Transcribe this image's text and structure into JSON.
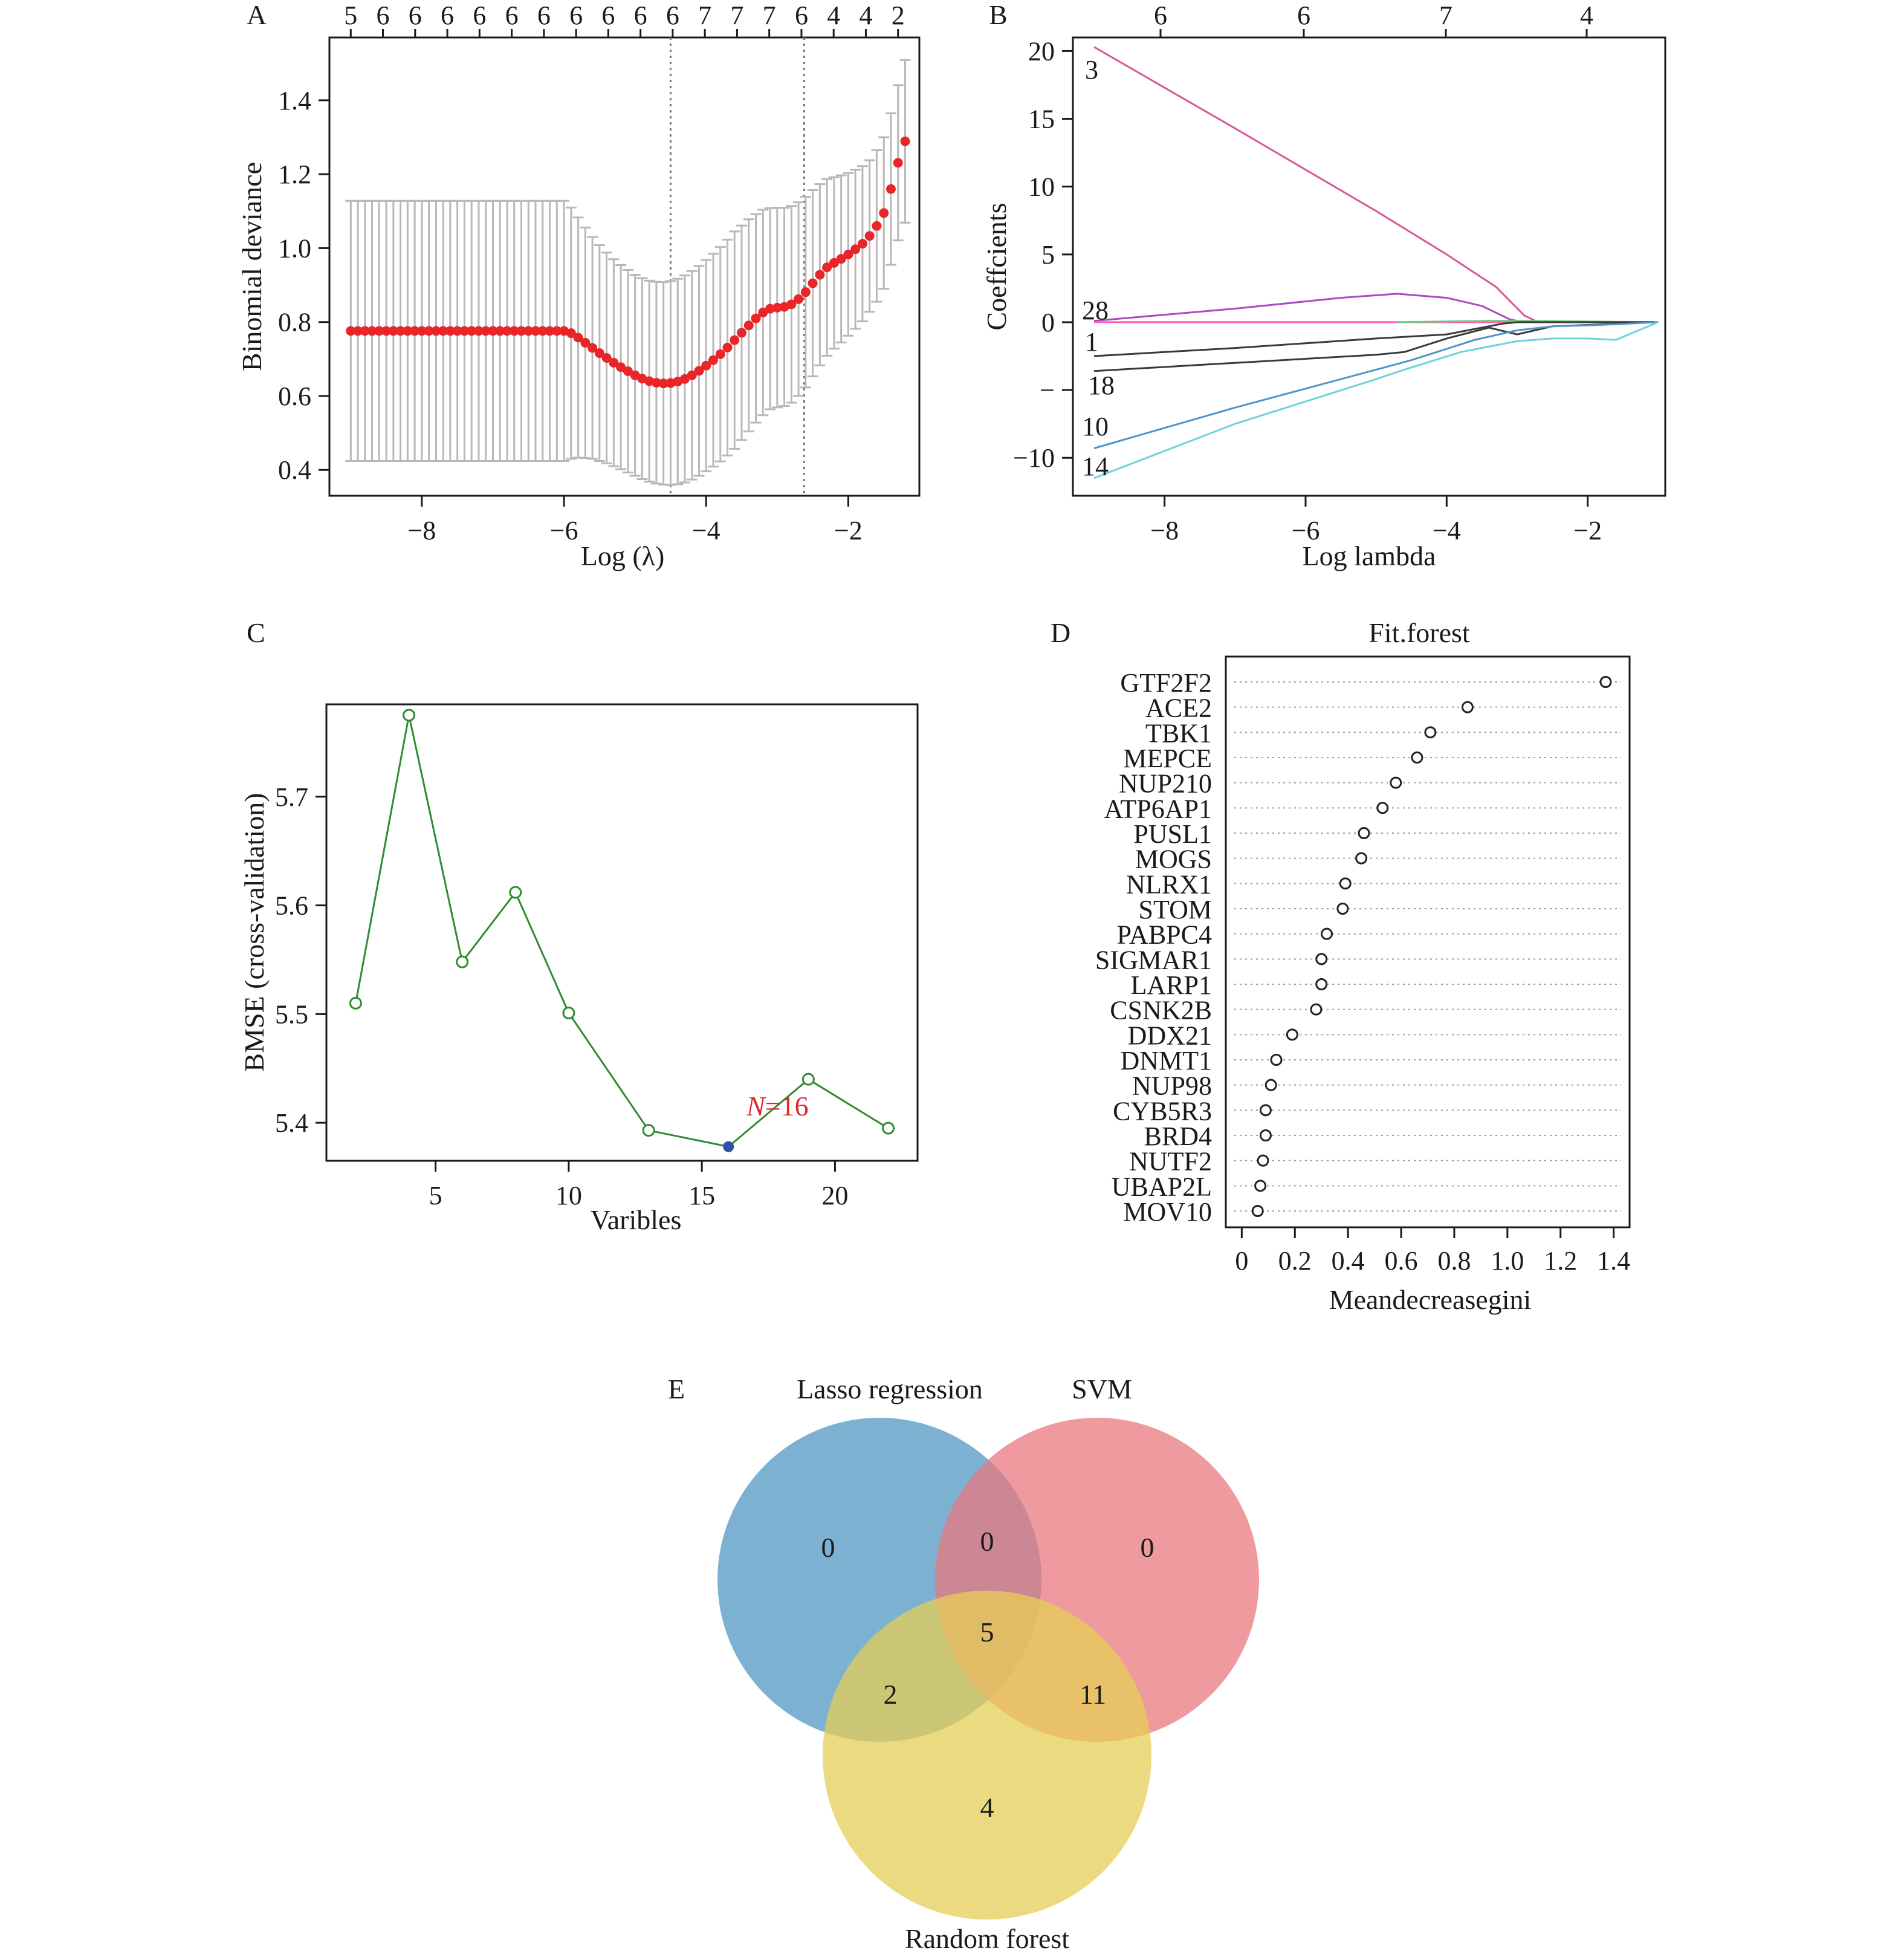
{
  "panels": {
    "A": {
      "letter": "A",
      "xlabel": "Log (λ)",
      "ylabel": "Binomial deviance",
      "top_counts": [
        "5",
        "6",
        "6",
        "6",
        "6",
        "6",
        "6",
        "6",
        "6",
        "6",
        "6",
        "7",
        "7",
        "7",
        "6",
        "4",
        "4",
        "2"
      ],
      "vlines": [
        -4.5,
        -2.62
      ]
    },
    "B": {
      "letter": "B",
      "xlabel": "Log lambda",
      "ylabel": "Coeffcients",
      "top_counts": [
        "6",
        "6",
        "7",
        "4"
      ],
      "line_labels": [
        "3",
        "28",
        "1",
        "18",
        "10",
        "14"
      ]
    },
    "C": {
      "letter": "C",
      "xlabel": "Varibles",
      "ylabel": "BMSE (cross-validation)",
      "annotation_n": "N",
      "annotation_value": "=16"
    },
    "D": {
      "letter": "D",
      "title": "Fit.forest",
      "xlabel": "Meandecreasegini"
    },
    "E": {
      "letter": "E",
      "sets": [
        "Lasso regression",
        "SVM",
        "Random forest"
      ],
      "counts": {
        "lasso_only": "0",
        "lasso_svm": "0",
        "svm_only": "0",
        "all_three": "5",
        "lasso_rf": "2",
        "svm_rf": "11",
        "rf_only": "4"
      },
      "colors": {
        "lasso": "#6fa8cd",
        "svm": "#e8787e",
        "rf": "#e6cd57"
      }
    }
  },
  "chart_data": [
    {
      "panel": "A",
      "type": "scatter",
      "xlim": [
        -9.3,
        -1.0
      ],
      "ylim": [
        0.33,
        1.57
      ],
      "xticks": [
        -8,
        -6,
        -4,
        -2
      ],
      "xtick_labels": [
        "−8",
        "−6",
        "−4",
        "−2"
      ],
      "yticks": [
        0.4,
        0.6,
        0.8,
        1.0,
        1.2,
        1.4
      ],
      "ytick_labels": [
        "0.4",
        "0.6",
        "0.8",
        "1.0",
        "1.2",
        "1.4"
      ],
      "series": [
        {
          "x_start": -9.0,
          "x_step": 0.1,
          "point_color": "#e8262a",
          "errorbar_color": "#b8b8b8",
          "y": [
            0.776,
            0.776,
            0.776,
            0.776,
            0.776,
            0.776,
            0.776,
            0.776,
            0.776,
            0.776,
            0.776,
            0.776,
            0.776,
            0.776,
            0.776,
            0.776,
            0.776,
            0.776,
            0.776,
            0.776,
            0.776,
            0.776,
            0.776,
            0.776,
            0.776,
            0.776,
            0.776,
            0.776,
            0.776,
            0.776,
            0.776,
            0.77,
            0.758,
            0.744,
            0.73,
            0.716,
            0.703,
            0.69,
            0.678,
            0.667,
            0.656,
            0.647,
            0.64,
            0.636,
            0.634,
            0.635,
            0.639,
            0.646,
            0.656,
            0.668,
            0.682,
            0.697,
            0.713,
            0.731,
            0.751,
            0.771,
            0.791,
            0.81,
            0.826,
            0.836,
            0.839,
            0.841,
            0.848,
            0.862,
            0.881,
            0.905,
            0.928,
            0.948,
            0.96,
            0.971,
            0.983,
            0.997,
            1.012,
            1.033,
            1.06,
            1.095,
            1.16,
            1.231,
            1.289
          ],
          "err": [
            0.352,
            0.352,
            0.352,
            0.352,
            0.352,
            0.352,
            0.352,
            0.352,
            0.352,
            0.352,
            0.352,
            0.352,
            0.352,
            0.352,
            0.352,
            0.352,
            0.352,
            0.352,
            0.352,
            0.352,
            0.352,
            0.352,
            0.352,
            0.352,
            0.352,
            0.352,
            0.352,
            0.352,
            0.352,
            0.352,
            0.352,
            0.34,
            0.325,
            0.312,
            0.3,
            0.292,
            0.285,
            0.28,
            0.276,
            0.274,
            0.272,
            0.272,
            0.272,
            0.273,
            0.274,
            0.276,
            0.278,
            0.28,
            0.282,
            0.284,
            0.286,
            0.288,
            0.29,
            0.292,
            0.294,
            0.29,
            0.287,
            0.282,
            0.278,
            0.272,
            0.27,
            0.268,
            0.266,
            0.262,
            0.258,
            0.252,
            0.245,
            0.239,
            0.232,
            0.226,
            0.22,
            0.215,
            0.21,
            0.205,
            0.205,
            0.205,
            0.205,
            0.21,
            0.22
          ]
        }
      ]
    },
    {
      "panel": "B",
      "type": "line",
      "xlim": [
        -9.3,
        -0.9
      ],
      "ylim": [
        -12.8,
        21.0
      ],
      "xticks": [
        -8,
        -6,
        -4,
        -2
      ],
      "xtick_labels": [
        "−8",
        "−6",
        "−4",
        "−2"
      ],
      "yticks": [
        -10,
        -5,
        0,
        5,
        10,
        15,
        20
      ],
      "ytick_labels": [
        "−10",
        "−",
        "0",
        "5",
        "10",
        "15",
        "20"
      ],
      "series": [
        {
          "name": "3",
          "color": "#d9569b",
          "points": [
            [
              -9.0,
              20.3
            ],
            [
              -7,
              14.3
            ],
            [
              -5,
              8.2
            ],
            [
              -4,
              5.0
            ],
            [
              -3.3,
              2.6
            ],
            [
              -2.9,
              0.5
            ],
            [
              -2.7,
              0
            ]
          ]
        },
        {
          "name": "28",
          "color": "#a84bbd",
          "points": [
            [
              -9.0,
              0.1
            ],
            [
              -7,
              1.0
            ],
            [
              -5.5,
              1.8
            ],
            [
              -4.7,
              2.1
            ],
            [
              -4.0,
              1.8
            ],
            [
              -3.5,
              1.2
            ],
            [
              -3.1,
              0.2
            ],
            [
              -2.9,
              0
            ]
          ]
        },
        {
          "name": "",
          "color": "#ff5bb5",
          "points": [
            [
              -9.0,
              0
            ],
            [
              -1.0,
              0
            ]
          ]
        },
        {
          "name": "",
          "color": "#72c97a",
          "points": [
            [
              -4.7,
              0
            ],
            [
              -3.4,
              0.1
            ],
            [
              -2.8,
              0.1
            ],
            [
              -1.0,
              0
            ]
          ]
        },
        {
          "name": "1",
          "color": "#3a3a3a",
          "points": [
            [
              -9.0,
              -2.5
            ],
            [
              -7,
              -1.9
            ],
            [
              -5,
              -1.2
            ],
            [
              -4.0,
              -0.9
            ],
            [
              -3.2,
              -0.1
            ],
            [
              -3.0,
              0
            ],
            [
              -1.0,
              0
            ]
          ]
        },
        {
          "name": "18",
          "color": "#3a3a3a",
          "points": [
            [
              -9.0,
              -3.6
            ],
            [
              -7,
              -3.0
            ],
            [
              -5,
              -2.4
            ],
            [
              -4.6,
              -2.2
            ],
            [
              -4.0,
              -1.2
            ],
            [
              -3.4,
              -0.4
            ],
            [
              -3.0,
              -0.9
            ],
            [
              -2.5,
              -0.3
            ],
            [
              -1.0,
              0
            ]
          ]
        },
        {
          "name": "10",
          "color": "#4f95c9",
          "points": [
            [
              -9.0,
              -9.3
            ],
            [
              -7,
              -6.3
            ],
            [
              -5,
              -3.5
            ],
            [
              -4.5,
              -2.8
            ],
            [
              -3.6,
              -1.3
            ],
            [
              -3.0,
              -0.6
            ],
            [
              -2.5,
              -0.3
            ],
            [
              -1.8,
              -0.2
            ],
            [
              -1.0,
              0
            ]
          ]
        },
        {
          "name": "14",
          "color": "#6cd3dc",
          "points": [
            [
              -9.0,
              -11.5
            ],
            [
              -7,
              -7.5
            ],
            [
              -5,
              -4.2
            ],
            [
              -4.6,
              -3.5
            ],
            [
              -3.8,
              -2.2
            ],
            [
              -3.0,
              -1.4
            ],
            [
              -2.5,
              -1.2
            ],
            [
              -2.0,
              -1.2
            ],
            [
              -1.6,
              -1.3
            ],
            [
              -1.0,
              0
            ]
          ]
        }
      ]
    },
    {
      "panel": "C",
      "type": "line",
      "xlim": [
        0.9,
        23.1
      ],
      "ylim": [
        5.365,
        5.785
      ],
      "xticks": [
        5,
        10,
        15,
        20
      ],
      "xtick_labels": [
        "5",
        "10",
        "15",
        "20"
      ],
      "yticks": [
        5.4,
        5.5,
        5.6,
        5.7
      ],
      "ytick_labels": [
        "5.4",
        "5.5",
        "5.6",
        "5.7"
      ],
      "series": [
        {
          "color": "#2e8b2e",
          "x": [
            2,
            4,
            6,
            8,
            10,
            13,
            16,
            19,
            22
          ],
          "y": [
            5.51,
            5.775,
            5.548,
            5.612,
            5.501,
            5.393,
            5.378,
            5.44,
            5.395
          ],
          "highlight_index": 6,
          "highlight_color": "#2c52a6"
        }
      ]
    },
    {
      "panel": "D",
      "type": "scatter",
      "xlim": [
        -0.06,
        1.46
      ],
      "xticks": [
        0,
        0.2,
        0.4,
        0.6,
        0.8,
        1.0,
        1.2,
        1.4
      ],
      "xtick_labels": [
        "0",
        "0.2",
        "0.4",
        "0.6",
        "0.8",
        "1.0",
        "1.2",
        "1.4"
      ],
      "categories": [
        "GTF2F2",
        "ACE2",
        "TBK1",
        "MEPCE",
        "NUP210",
        "ATP6AP1",
        "PUSL1",
        "MOGS",
        "NLRX1",
        "STOM",
        "PABPC4",
        "SIGMAR1",
        "LARP1",
        "CSNK2B",
        "DDX21",
        "DNMT1",
        "NUP98",
        "CYB5R3",
        "BRD4",
        "NUTF2",
        "UBAP2L",
        "MOV10"
      ],
      "values": [
        1.37,
        0.85,
        0.71,
        0.66,
        0.58,
        0.53,
        0.46,
        0.45,
        0.39,
        0.38,
        0.32,
        0.3,
        0.3,
        0.28,
        0.19,
        0.13,
        0.11,
        0.09,
        0.09,
        0.08,
        0.07,
        0.06
      ]
    }
  ]
}
